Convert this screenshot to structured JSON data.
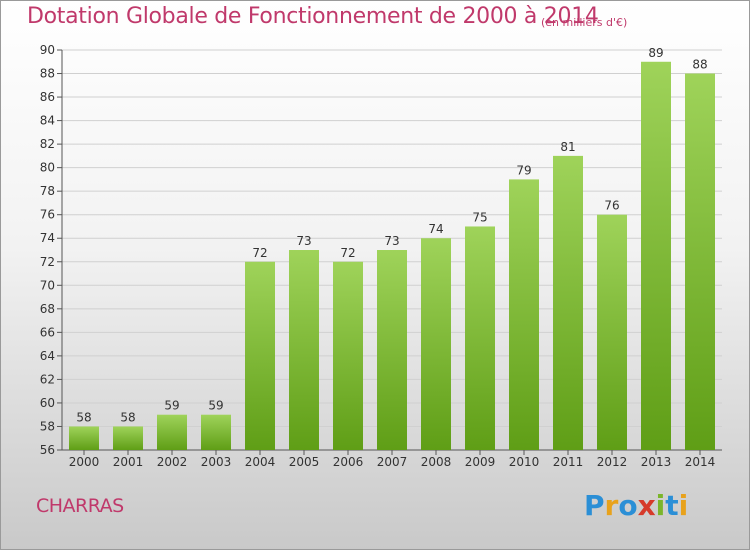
{
  "title": "Dotation Globale de Fonctionnement de 2000 à 2014",
  "unit_label": "(en milliers d'€)",
  "commune": "CHARRAS",
  "logo": {
    "text": "Proxiti",
    "letters": [
      "P",
      "r",
      "o",
      "x",
      "i",
      "t",
      "i"
    ],
    "colors": [
      "#2b8fd6",
      "#e8a21c",
      "#2b8fd6",
      "#d63a2a",
      "#7bb52a",
      "#2b8fd6",
      "#e8a21c"
    ]
  },
  "colors": {
    "bar_light": "#9fd35a",
    "bar_dark": "#5f9e16",
    "title": "#c0396b",
    "grid": "#d0d0d0"
  },
  "chart_data": {
    "type": "bar",
    "title": "Dotation Globale de Fonctionnement de 2000 à 2014",
    "subtitle": "(en milliers d'€)",
    "xlabel": "",
    "ylabel": "",
    "categories": [
      "2000",
      "2001",
      "2002",
      "2003",
      "2004",
      "2005",
      "2006",
      "2007",
      "2008",
      "2009",
      "2010",
      "2011",
      "2012",
      "2013",
      "2014"
    ],
    "values": [
      58,
      58,
      59,
      59,
      72,
      73,
      72,
      73,
      74,
      75,
      79,
      81,
      76,
      89,
      88
    ],
    "ylim": [
      56,
      90
    ],
    "yticks": [
      56,
      58,
      60,
      62,
      64,
      66,
      68,
      70,
      72,
      74,
      76,
      78,
      80,
      82,
      84,
      86,
      88,
      90
    ],
    "grid": true
  }
}
